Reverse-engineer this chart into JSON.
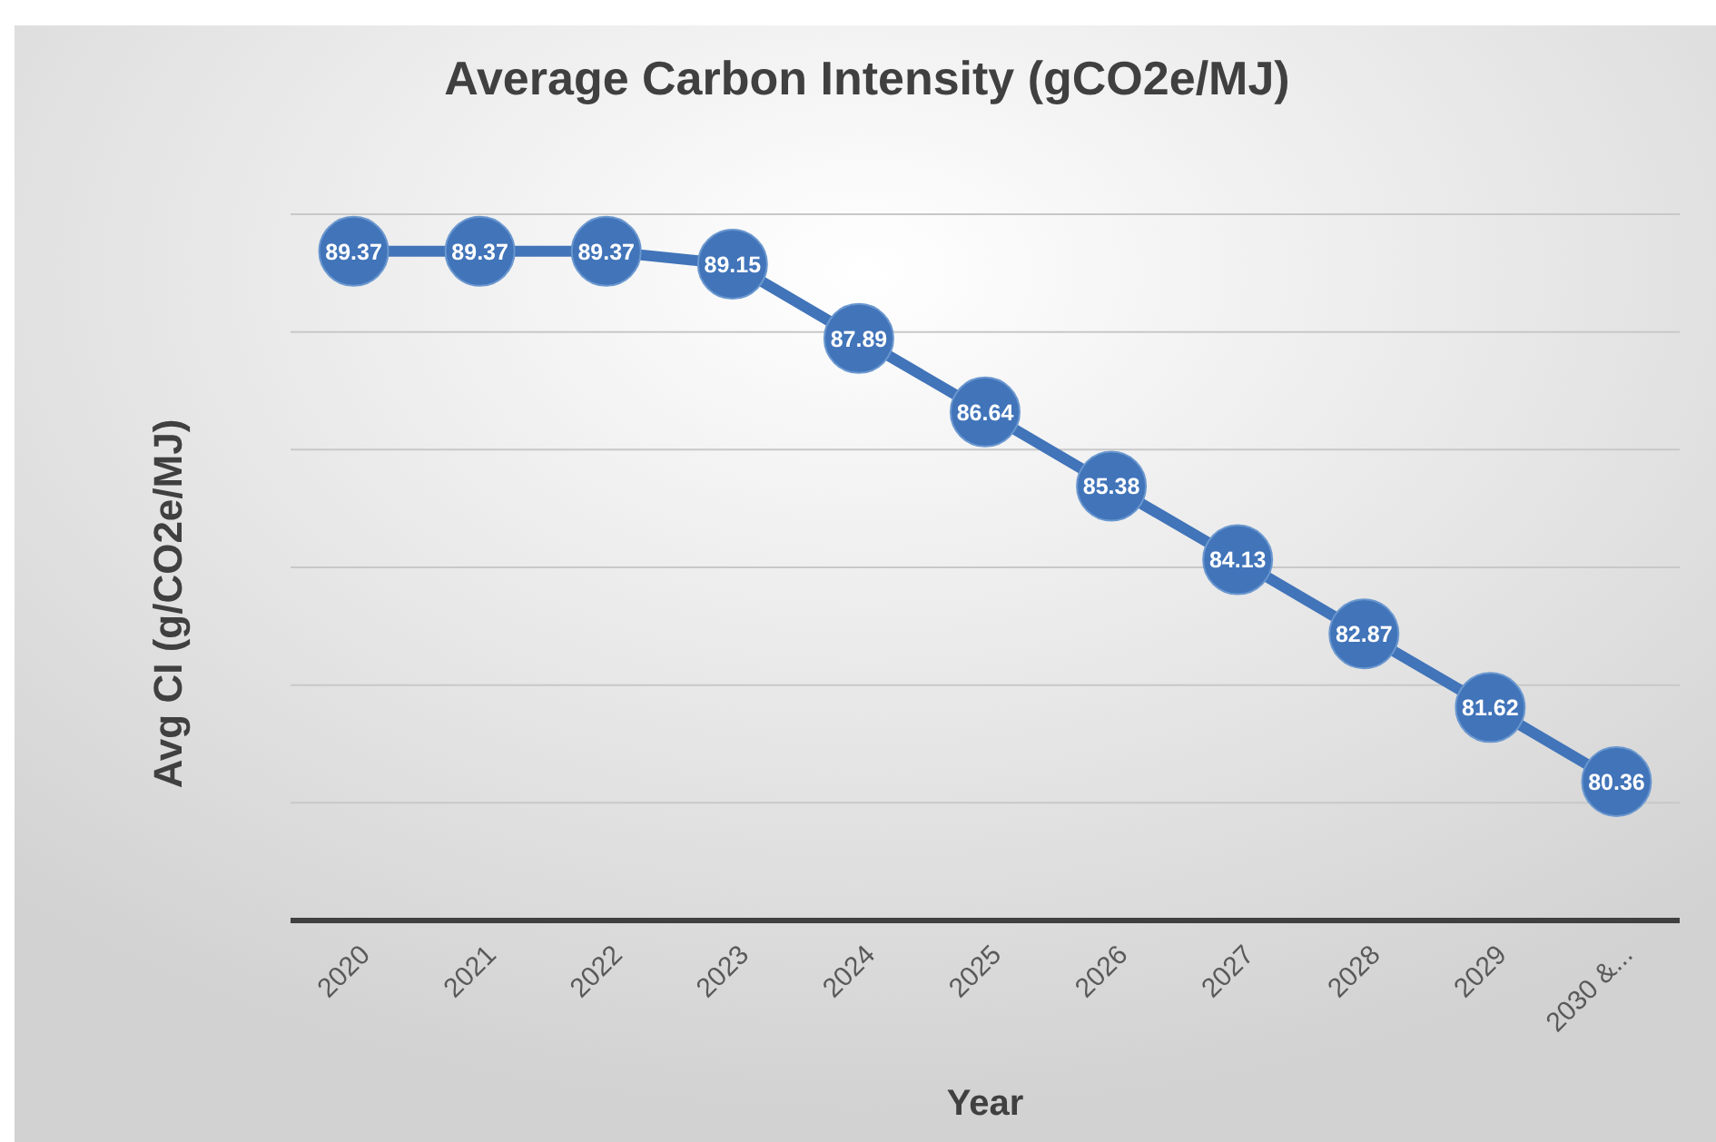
{
  "chart_data": {
    "type": "line",
    "title": "Average Carbon Intensity (gCO2e/MJ)",
    "xlabel": "Year",
    "ylabel": "Avg CI (g/CO2e/MJ)",
    "categories": [
      "2020",
      "2021",
      "2022",
      "2023",
      "2024",
      "2025",
      "2026",
      "2027",
      "2028",
      "2029",
      "2030 &..."
    ],
    "series": [
      {
        "color": "#4174b9",
        "values": [
          89.37,
          89.37,
          89.37,
          89.15,
          87.89,
          86.64,
          85.38,
          84.13,
          82.87,
          81.62,
          80.36
        ]
      }
    ],
    "ylim": [
      78,
      90
    ],
    "yticks": [
      {
        "value": 78,
        "label": null
      },
      {
        "value": 80,
        "label": null
      },
      {
        "value": 82,
        "label": null
      },
      {
        "value": 84,
        "label": null
      },
      {
        "value": 86,
        "label": null
      },
      {
        "value": 88,
        "label": null
      },
      {
        "value": 90,
        "label": null
      }
    ],
    "tick_labels": "x",
    "grid": "y",
    "marker": "circle",
    "data_labels": true
  }
}
